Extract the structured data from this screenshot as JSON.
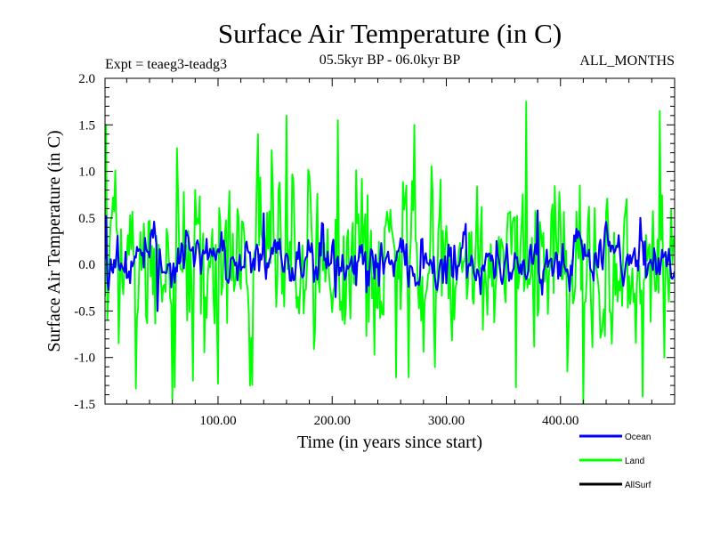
{
  "chart_data": {
    "type": "line",
    "title": "Surface Air Temperature (in C)",
    "subtitle_left": "Expt = teaeg3-teadg3",
    "subtitle_center": "05.5kyr BP - 06.0kyr BP",
    "subtitle_right": "ALL_MONTHS",
    "xlabel": "Time (in years since start)",
    "ylabel": "Surface Air Temperature (in C)",
    "xlim": [
      1,
      500
    ],
    "ylim": [
      -1.5,
      2.0
    ],
    "x_ticks": [
      100,
      200,
      300,
      400
    ],
    "x_tick_labels": [
      "100.00",
      "200.00",
      "300.00",
      "400.00"
    ],
    "y_ticks": [
      -1.5,
      -1.0,
      -0.5,
      0.0,
      0.5,
      1.0,
      1.5,
      2.0
    ],
    "y_tick_labels": [
      "-1.5",
      "-1.0",
      "-0.5",
      "0.0",
      "0.5",
      "1.0",
      "1.5",
      "2.0"
    ],
    "series": [
      {
        "name": "Land",
        "color": "#00ff00",
        "n_points": 500,
        "mean": 0.0,
        "std": 0.45,
        "min": -1.5,
        "max": 1.75,
        "notable_points": [
          {
            "x": 2,
            "y": 1.5
          },
          {
            "x": 64,
            "y": 1.25
          },
          {
            "x": 135,
            "y": 1.4
          },
          {
            "x": 160,
            "y": 1.6
          },
          {
            "x": 205,
            "y": 1.55
          },
          {
            "x": 272,
            "y": 1.5
          },
          {
            "x": 370,
            "y": 1.75
          },
          {
            "x": 487,
            "y": 1.65
          },
          {
            "x": 62,
            "y": -1.32
          },
          {
            "x": 100,
            "y": -1.28
          },
          {
            "x": 128,
            "y": -1.3
          },
          {
            "x": 361,
            "y": -1.32
          },
          {
            "x": 420,
            "y": -1.5
          },
          {
            "x": 472,
            "y": -1.42
          },
          {
            "x": 491,
            "y": -1.0
          }
        ]
      },
      {
        "name": "Ocean",
        "color": "#0000ff",
        "n_points": 500,
        "mean": 0.05,
        "std": 0.15,
        "min": -0.5,
        "max": 0.6,
        "notable_points": [
          {
            "x": 2,
            "y": 0.52
          },
          {
            "x": 140,
            "y": 0.55
          },
          {
            "x": 380,
            "y": 0.58
          },
          {
            "x": 470,
            "y": 0.5
          },
          {
            "x": 47,
            "y": -0.5
          },
          {
            "x": 230,
            "y": -0.3
          },
          {
            "x": 330,
            "y": -0.32
          }
        ]
      },
      {
        "name": "AllSurf",
        "color": "#000000",
        "n_points": 0
      }
    ],
    "legend": [
      {
        "label": "Ocean",
        "color": "#0000ff"
      },
      {
        "label": "Land",
        "color": "#00ff00"
      },
      {
        "label": "AllSurf",
        "color": "#000000"
      }
    ],
    "legend_position": "bottom-right, below plot",
    "grid": false
  }
}
